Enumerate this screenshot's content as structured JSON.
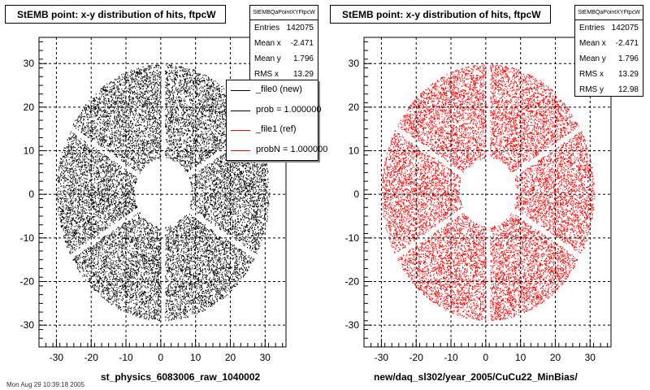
{
  "chart_data": [
    {
      "type": "scatter",
      "title": "StEMB point: x-y distribution of hits, ftpcW",
      "xlabel": "st_physics_6083006_raw_1040002",
      "ylabel": "",
      "xlim": [
        -35,
        36
      ],
      "ylim": [
        -35,
        36
      ],
      "x_ticks": [
        -30,
        -20,
        -10,
        0,
        10,
        20,
        30
      ],
      "y_ticks": [
        -30,
        -20,
        -10,
        0,
        10,
        20,
        30
      ],
      "grid": true,
      "color": "#000000",
      "distribution": {
        "inner_radius": 8.0,
        "outer_radius": 30.0,
        "gap_angles_deg": [
          90,
          150,
          210,
          270,
          330,
          30
        ],
        "gap_half_width": 0.6
      },
      "stats": {
        "name": "StEMBQaPointXYFtpcW",
        "rows": [
          {
            "label": "Entries",
            "value": "142075"
          },
          {
            "label": "Mean x",
            "value": "-2.471"
          },
          {
            "label": "Mean y",
            "value": "1.796"
          },
          {
            "label": "RMS x",
            "value": "13.29"
          }
        ]
      },
      "legend": {
        "placement": "top-right",
        "entries": [
          {
            "label": "_file0 (new)",
            "color": "#000000"
          },
          {
            "label": "prob = 1.000000",
            "color": "#000000"
          },
          {
            "label": "_file1 (ref)",
            "color": "#ff0000"
          },
          {
            "label": "probN = 1.000000",
            "color": "#ff0000"
          }
        ]
      }
    },
    {
      "type": "scatter",
      "title": "StEMB point: x-y distribution of hits, ftpcW",
      "xlabel": "new/daq_sl302/year_2005/CuCu22_MinBias/",
      "ylabel": "",
      "xlim": [
        -35,
        36
      ],
      "ylim": [
        -35,
        36
      ],
      "x_ticks": [
        -30,
        -20,
        -10,
        0,
        10,
        20,
        30
      ],
      "y_ticks": [
        -30,
        -20,
        -10,
        0,
        10,
        20,
        30
      ],
      "grid": true,
      "color": "#ff0000",
      "distribution": {
        "inner_radius": 8.0,
        "outer_radius": 30.0,
        "gap_angles_deg": [
          90,
          150,
          210,
          270,
          330,
          30
        ],
        "gap_half_width": 0.6
      },
      "stats": {
        "name": "StEMBQaPointXYFtpcW",
        "rows": [
          {
            "label": "Entries",
            "value": "142075"
          },
          {
            "label": "Mean x",
            "value": "-2.471"
          },
          {
            "label": "Mean y",
            "value": "1.796"
          },
          {
            "label": "RMS x",
            "value": "13.29"
          },
          {
            "label": "RMS y",
            "value": "12.98"
          }
        ]
      }
    }
  ],
  "footer": "Mon Aug 29 10:39:18 2005"
}
